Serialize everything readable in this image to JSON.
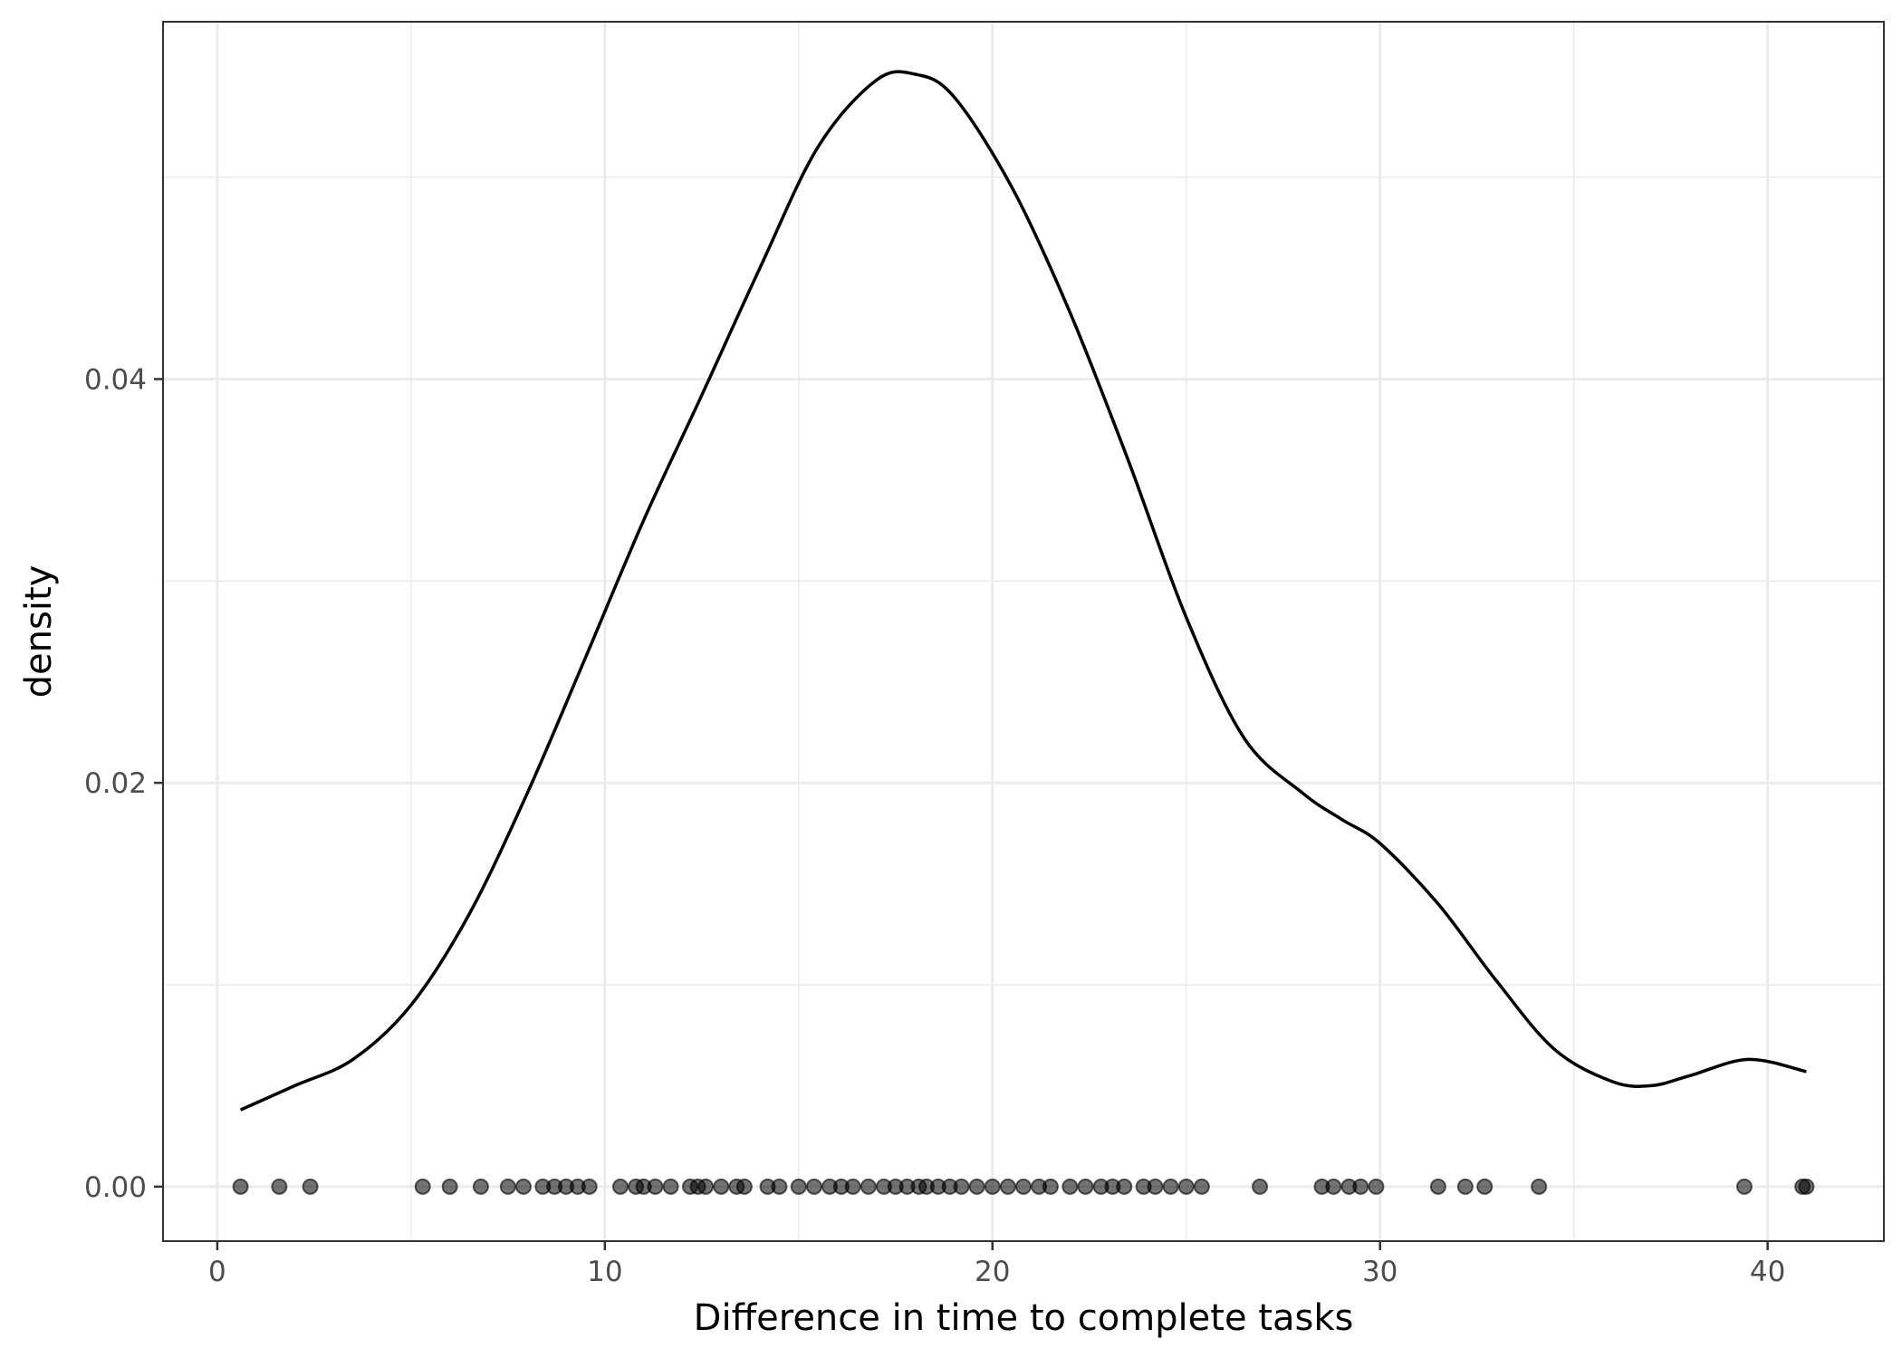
{
  "chart_data": {
    "type": "line",
    "xlabel": "Difference in time to complete tasks",
    "ylabel": "density",
    "xlim": [
      -1.4,
      43
    ],
    "ylim": [
      -0.0027,
      0.0577
    ],
    "grid": true,
    "x_ticks": [
      0,
      10,
      20,
      30,
      40
    ],
    "x_tick_labels": [
      "0",
      "10",
      "20",
      "30",
      "40"
    ],
    "y_ticks": [
      0,
      0.02,
      0.04
    ],
    "y_tick_labels": [
      "0.00",
      "0.02",
      "0.04"
    ],
    "series": [
      {
        "style": "line",
        "x": [
          0.6,
          2.0,
          3.5,
          5.0,
          6.5,
          8.0,
          9.5,
          11.0,
          12.5,
          14.0,
          15.5,
          17.0,
          18.0,
          19.0,
          20.5,
          22.0,
          23.5,
          25.0,
          26.5,
          28.0,
          29.0,
          30.0,
          31.5,
          33.0,
          34.5,
          36.0,
          37.0,
          38.0,
          39.5,
          41.0
        ],
        "y": [
          0.0038,
          0.005,
          0.0063,
          0.009,
          0.0135,
          0.0195,
          0.0262,
          0.033,
          0.0392,
          0.0455,
          0.0515,
          0.0548,
          0.0551,
          0.054,
          0.0495,
          0.0433,
          0.036,
          0.0282,
          0.0222,
          0.0195,
          0.0182,
          0.017,
          0.014,
          0.0102,
          0.0068,
          0.0052,
          0.005,
          0.0055,
          0.0063,
          0.0057
        ]
      },
      {
        "style": "points",
        "x": [
          0.6,
          1.6,
          2.4,
          5.3,
          6.0,
          6.8,
          7.5,
          7.9,
          8.4,
          8.7,
          9.0,
          9.3,
          9.6,
          10.4,
          10.8,
          11.0,
          11.3,
          11.7,
          12.2,
          12.4,
          12.6,
          13.0,
          13.4,
          13.6,
          14.2,
          14.5,
          15.0,
          15.4,
          15.8,
          16.1,
          16.4,
          16.8,
          17.2,
          17.5,
          17.8,
          18.1,
          18.3,
          18.6,
          18.9,
          19.2,
          19.6,
          20.0,
          20.4,
          20.8,
          21.2,
          21.5,
          22.0,
          22.4,
          22.8,
          23.1,
          23.4,
          23.9,
          24.2,
          24.6,
          25.0,
          25.4,
          26.9,
          28.5,
          28.8,
          29.2,
          29.5,
          29.9,
          31.5,
          32.2,
          32.7,
          34.1,
          39.4,
          40.9,
          41.0
        ],
        "y": [
          0,
          0,
          0,
          0,
          0,
          0,
          0,
          0,
          0,
          0,
          0,
          0,
          0,
          0,
          0,
          0,
          0,
          0,
          0,
          0,
          0,
          0,
          0,
          0,
          0,
          0,
          0,
          0,
          0,
          0,
          0,
          0,
          0,
          0,
          0,
          0,
          0,
          0,
          0,
          0,
          0,
          0,
          0,
          0,
          0,
          0,
          0,
          0,
          0,
          0,
          0,
          0,
          0,
          0,
          0,
          0,
          0,
          0,
          0,
          0,
          0,
          0,
          0,
          0,
          0,
          0,
          0,
          0,
          0
        ]
      }
    ]
  }
}
